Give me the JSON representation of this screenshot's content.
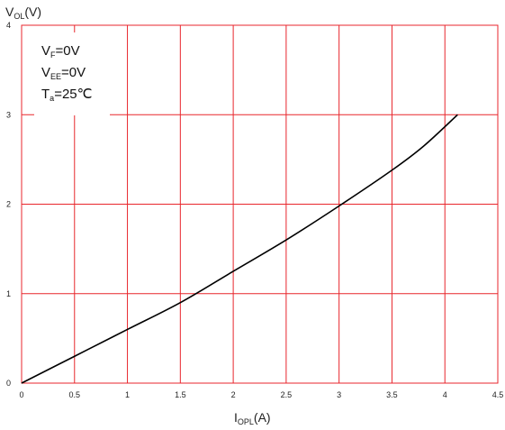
{
  "chart_data": {
    "type": "line",
    "xlabel": {
      "main": "I",
      "sub": "OPL",
      "unit": "(A)"
    },
    "ylabel": {
      "main": "V",
      "sub": "OL",
      "unit": "(V)"
    },
    "xlim": [
      0,
      4.5
    ],
    "ylim": [
      0,
      4
    ],
    "x_ticks": [
      "0",
      "0.5",
      "1",
      "1.5",
      "2",
      "2.5",
      "3",
      "3.5",
      "4",
      "4.5"
    ],
    "y_ticks": [
      "0",
      "1",
      "2",
      "3",
      "4"
    ],
    "grid": true,
    "colors": {
      "grid": "#e8262c",
      "line": "#000000",
      "axis": "#e8262c"
    },
    "conditions": [
      {
        "main": "V",
        "sub": "F",
        "rest": "=0V"
      },
      {
        "main": "V",
        "sub": "EE",
        "rest": "=0V"
      },
      {
        "main": "T",
        "sub": "a",
        "rest": "=25℃"
      }
    ],
    "series": [
      {
        "x": [
          0,
          0.5,
          1.0,
          1.5,
          2.0,
          2.5,
          3.0,
          3.5,
          3.8,
          4.12
        ],
        "y": [
          0,
          0.3,
          0.6,
          0.9,
          1.25,
          1.6,
          1.98,
          2.38,
          2.65,
          3.0
        ]
      }
    ]
  }
}
